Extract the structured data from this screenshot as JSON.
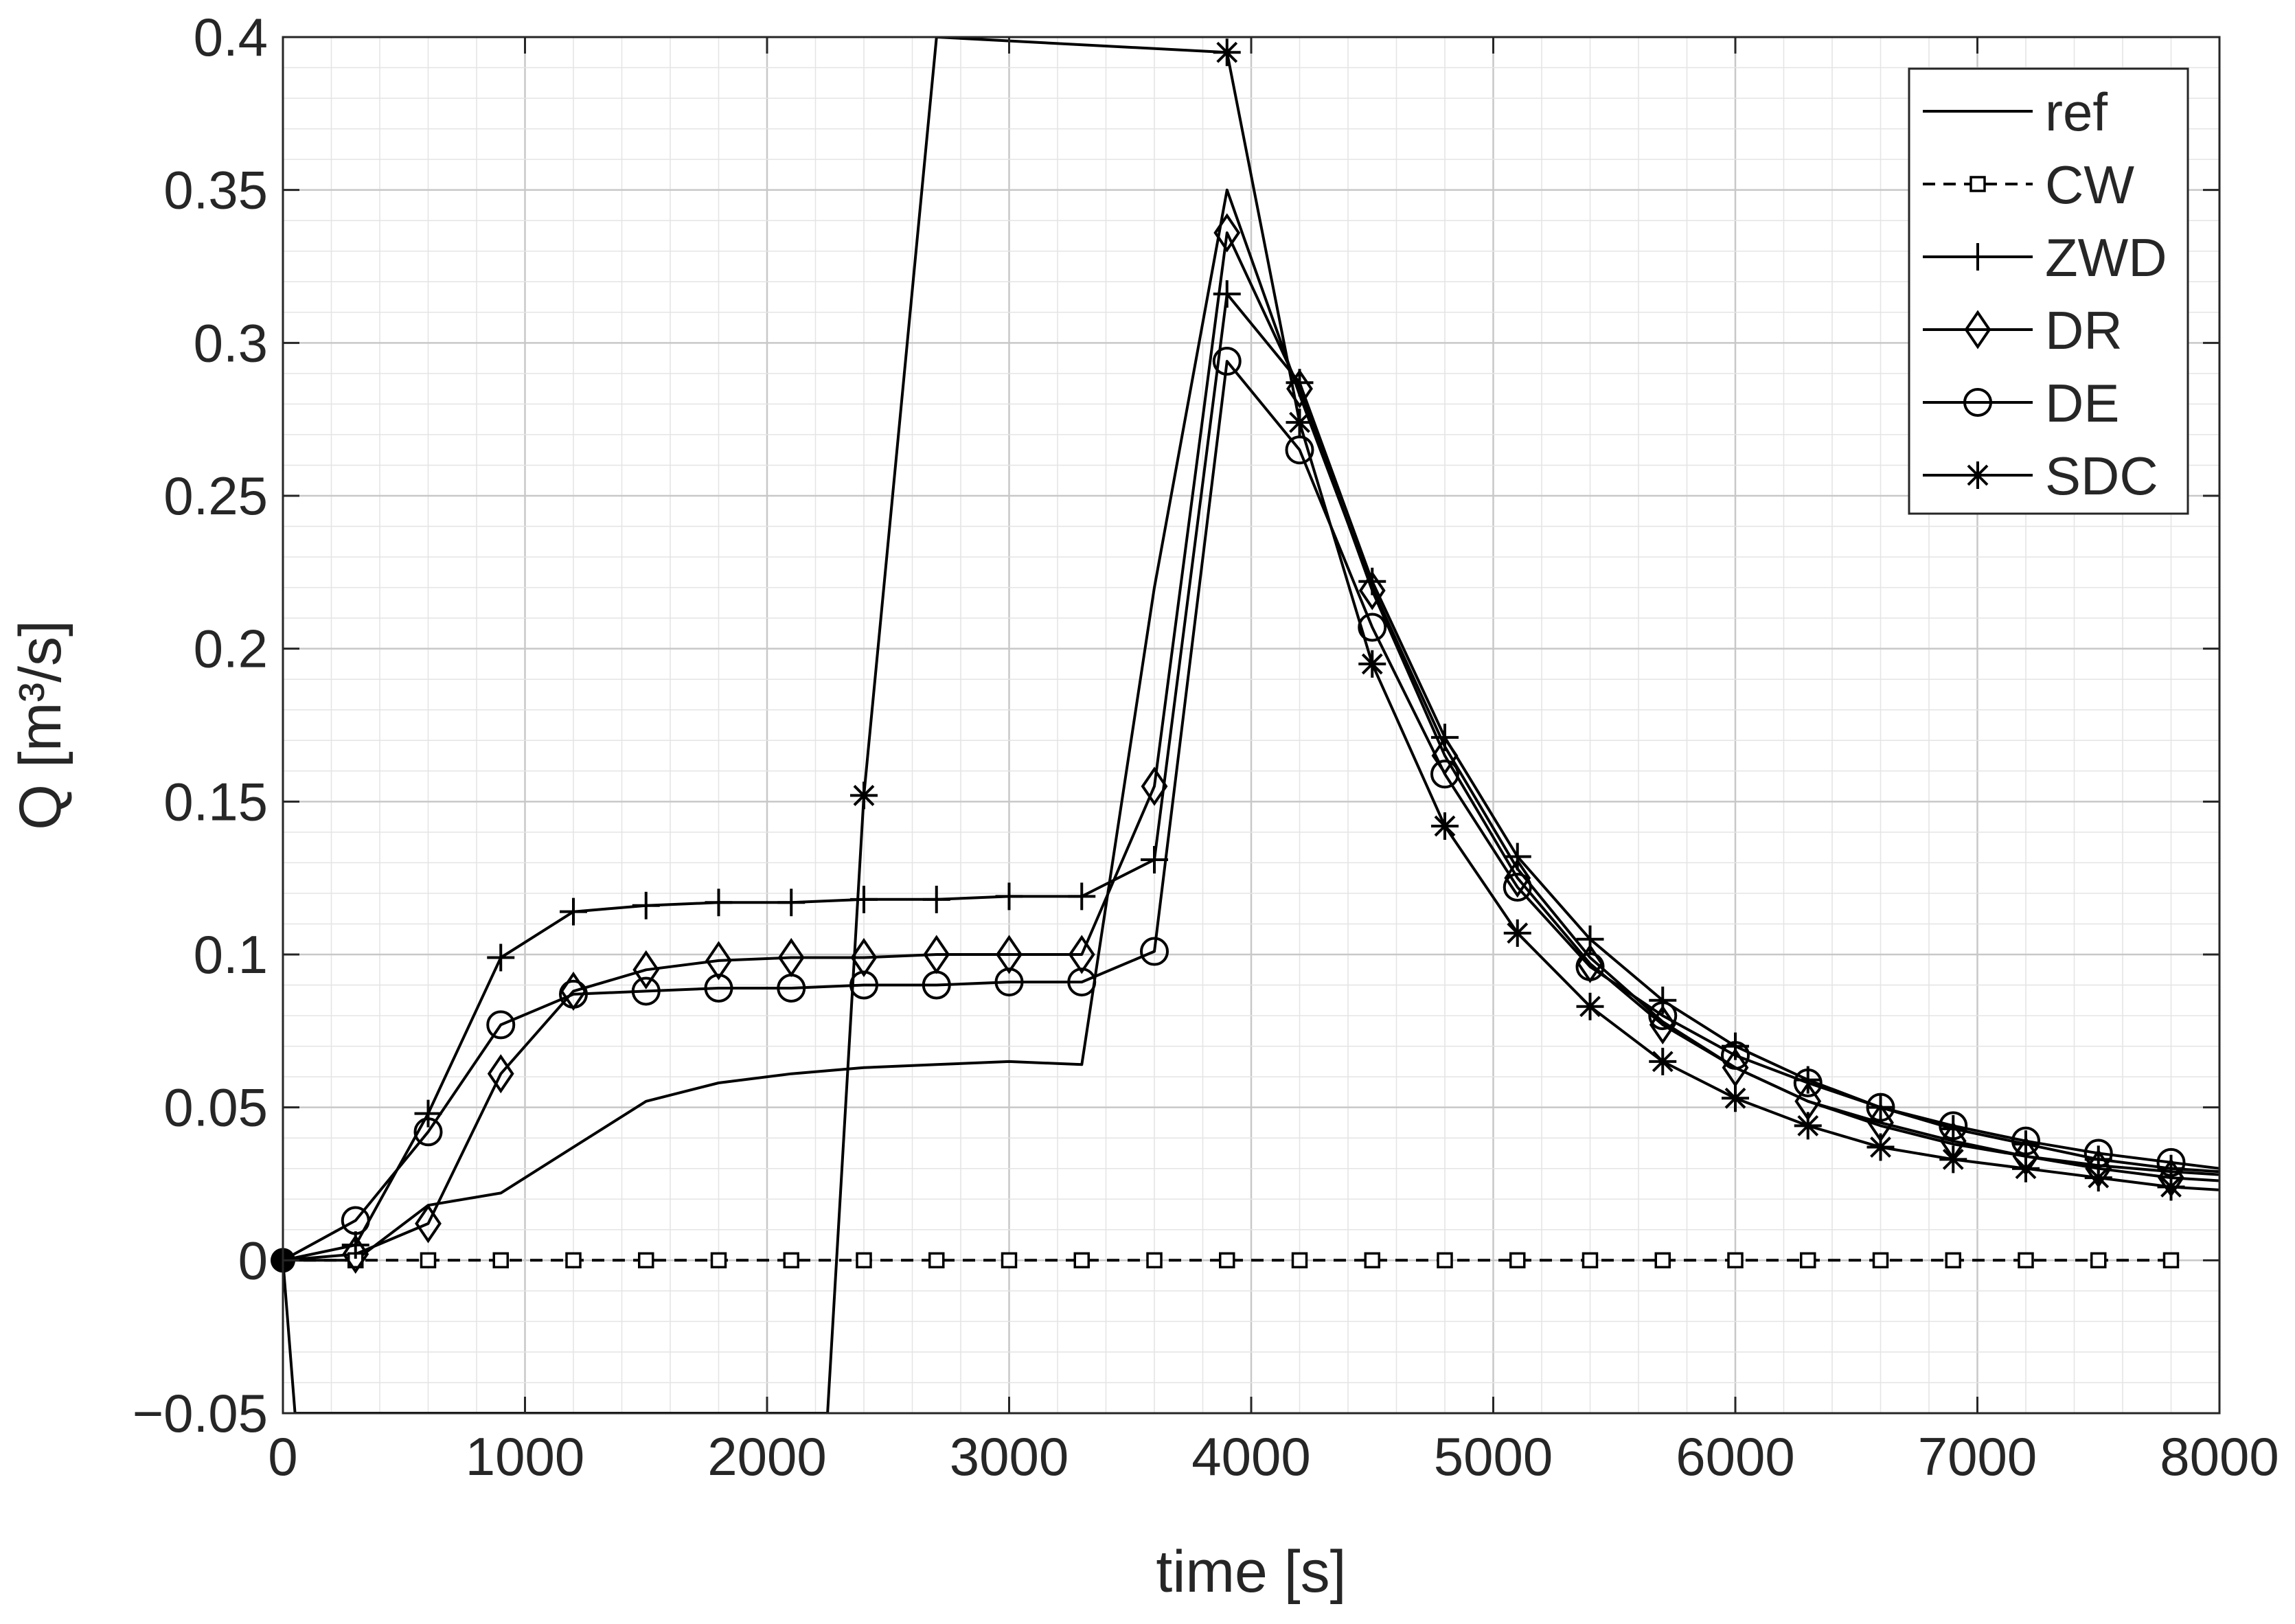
{
  "chart_data": {
    "type": "line",
    "title": "",
    "xlabel": "time [s]",
    "ylabel": "Q [m³/s]",
    "xlim": [
      0,
      8000
    ],
    "ylim": [
      -0.05,
      0.4
    ],
    "x_ticks": [
      0,
      1000,
      2000,
      3000,
      4000,
      5000,
      6000,
      7000,
      8000
    ],
    "x_tick_labels": [
      "0",
      "1000",
      "2000",
      "3000",
      "4000",
      "5000",
      "6000",
      "7000",
      "8000"
    ],
    "y_ticks": [
      -0.05,
      0,
      0.05,
      0.1,
      0.15,
      0.2,
      0.25,
      0.3,
      0.35,
      0.4
    ],
    "y_tick_labels": [
      "−0.05",
      "0",
      "0.05",
      "0.1",
      "0.15",
      "0.2",
      "0.25",
      "0.3",
      "0.35",
      "0.4"
    ],
    "grid": "major and minor",
    "legend_position": "top-right",
    "colors": {
      "line": "#000000",
      "grid_major": "#c8c8c8",
      "grid_minor": "#e4e4e4",
      "axes": "#262626"
    },
    "series": [
      {
        "name": "ref",
        "line_style": "solid",
        "marker": "none",
        "x": [
          0,
          300,
          600,
          900,
          1200,
          1500,
          1800,
          2100,
          2400,
          2700,
          3000,
          3300,
          3600,
          3900,
          4200,
          4500,
          4800,
          5100,
          5400,
          5700,
          6000,
          6300,
          6600,
          6900,
          7200,
          7500,
          7800,
          8000
        ],
        "y": [
          0,
          0.0,
          0.018,
          0.022,
          0.037,
          0.052,
          0.058,
          0.061,
          0.063,
          0.064,
          0.065,
          0.064,
          0.22,
          0.35,
          0.283,
          0.22,
          0.168,
          0.128,
          0.099,
          0.078,
          0.063,
          0.052,
          0.044,
          0.038,
          0.034,
          0.031,
          0.029,
          0.028
        ]
      },
      {
        "name": "CW",
        "line_style": "dashed",
        "marker": "square",
        "x": [
          0,
          300,
          600,
          900,
          1200,
          1500,
          1800,
          2100,
          2400,
          2700,
          3000,
          3300,
          3600,
          3900,
          4200,
          4500,
          4800,
          5100,
          5400,
          5700,
          6000,
          6300,
          6600,
          6900,
          7200,
          7500,
          7800
        ],
        "y": [
          0,
          0,
          0,
          0,
          0,
          0,
          0,
          0,
          0,
          0,
          0,
          0,
          0,
          0,
          0,
          0,
          0,
          0,
          0,
          0,
          0,
          0,
          0,
          0,
          0,
          0,
          0
        ]
      },
      {
        "name": "ZWD",
        "line_style": "solid",
        "marker": "plus",
        "x": [
          0,
          300,
          600,
          900,
          1200,
          1500,
          1800,
          2100,
          2400,
          2700,
          3000,
          3300,
          3600,
          3900,
          4200,
          4500,
          4800,
          5100,
          5400,
          5700,
          6000,
          6300,
          6600,
          6900,
          7200,
          7500,
          7800,
          8000
        ],
        "y": [
          0,
          0.005,
          0.048,
          0.099,
          0.114,
          0.116,
          0.117,
          0.117,
          0.118,
          0.118,
          0.119,
          0.119,
          0.131,
          0.316,
          0.287,
          0.222,
          0.171,
          0.132,
          0.105,
          0.085,
          0.07,
          0.059,
          0.05,
          0.043,
          0.038,
          0.033,
          0.03,
          0.029
        ]
      },
      {
        "name": "DR",
        "line_style": "solid",
        "marker": "diamond",
        "x": [
          0,
          300,
          600,
          900,
          1200,
          1500,
          1800,
          2100,
          2400,
          2700,
          3000,
          3300,
          3600,
          3900,
          4200,
          4500,
          4800,
          5100,
          5400,
          5700,
          6000,
          6300,
          6600,
          6900,
          7200,
          7500,
          7800,
          8000
        ],
        "y": [
          0,
          0.002,
          0.012,
          0.061,
          0.088,
          0.095,
          0.098,
          0.099,
          0.099,
          0.1,
          0.1,
          0.1,
          0.155,
          0.336,
          0.285,
          0.219,
          0.165,
          0.125,
          0.097,
          0.077,
          0.063,
          0.052,
          0.045,
          0.039,
          0.034,
          0.03,
          0.027,
          0.026
        ]
      },
      {
        "name": "DE",
        "line_style": "solid",
        "marker": "circle",
        "x": [
          0,
          300,
          600,
          900,
          1200,
          1500,
          1800,
          2100,
          2400,
          2700,
          3000,
          3300,
          3600,
          3900,
          4200,
          4500,
          4800,
          5100,
          5400,
          5700,
          6000,
          6300,
          6600,
          6900,
          7200,
          7500,
          7800,
          8000
        ],
        "y": [
          0,
          0.013,
          0.042,
          0.077,
          0.087,
          0.088,
          0.089,
          0.089,
          0.09,
          0.09,
          0.091,
          0.091,
          0.101,
          0.294,
          0.265,
          0.207,
          0.159,
          0.122,
          0.096,
          0.08,
          0.067,
          0.058,
          0.05,
          0.044,
          0.039,
          0.035,
          0.032,
          0.03
        ]
      },
      {
        "name": "SDC",
        "line_style": "solid",
        "marker": "asterisk",
        "x": [
          0,
          50,
          2250,
          2400,
          2700,
          3900,
          4200,
          4500,
          4800,
          5100,
          5400,
          5700,
          6000,
          6300,
          6600,
          6900,
          7200,
          7500,
          7800,
          8000
        ],
        "y": [
          0,
          -0.05,
          -0.05,
          0.152,
          0.4,
          0.395,
          0.274,
          0.195,
          0.142,
          0.107,
          0.083,
          0.065,
          0.053,
          0.044,
          0.037,
          0.033,
          0.03,
          0.027,
          0.024,
          0.023
        ],
        "marker_x": [
          2400,
          3900,
          4200,
          4500,
          4800,
          5100,
          5400,
          5700,
          6000,
          6300,
          6600,
          6900,
          7200,
          7500,
          7800
        ]
      }
    ],
    "start_marker": {
      "x": 0,
      "y": 0
    }
  }
}
